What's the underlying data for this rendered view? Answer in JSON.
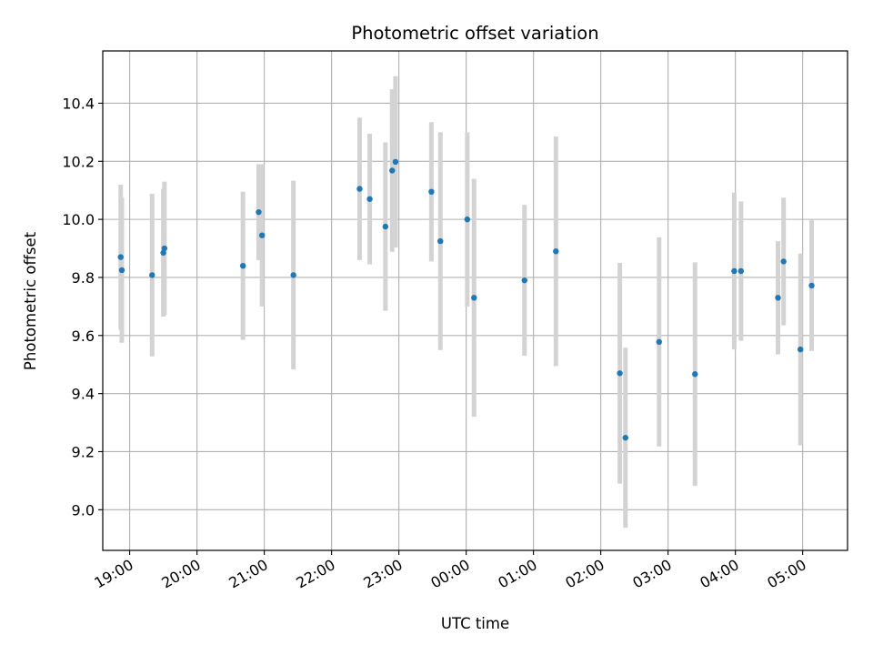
{
  "chart_data": {
    "type": "scatter",
    "title": "Photometric offset variation",
    "xlabel": "UTC time",
    "ylabel": "Photometric offset",
    "xlim": [
      "18:36",
      "05:40"
    ],
    "ylim": [
      8.86,
      10.58
    ],
    "x_ticks": [
      "19:00",
      "20:00",
      "21:00",
      "22:00",
      "23:00",
      "00:00",
      "01:00",
      "02:00",
      "03:00",
      "04:00",
      "05:00"
    ],
    "y_ticks": [
      9.0,
      9.2,
      9.4,
      9.6,
      9.8,
      10.0,
      10.2,
      10.4
    ],
    "grid": true,
    "colors": {
      "marker": "#1f77b4",
      "errorbar": "#d3d3d3",
      "grid": "#b0b0b0"
    },
    "points": [
      {
        "time": "18:52",
        "value": 9.87,
        "err": 0.25
      },
      {
        "time": "18:53",
        "value": 9.825,
        "err": 0.25
      },
      {
        "time": "19:20",
        "value": 9.808,
        "err": 0.28
      },
      {
        "time": "19:30",
        "value": 9.885,
        "err": 0.22
      },
      {
        "time": "19:31",
        "value": 9.9,
        "err": 0.23
      },
      {
        "time": "20:41",
        "value": 9.84,
        "err": 0.255
      },
      {
        "time": "20:55",
        "value": 10.025,
        "err": 0.165
      },
      {
        "time": "20:58",
        "value": 9.945,
        "err": 0.245
      },
      {
        "time": "21:26",
        "value": 9.808,
        "err": 0.325
      },
      {
        "time": "22:25",
        "value": 10.105,
        "err": 0.245
      },
      {
        "time": "22:34",
        "value": 10.07,
        "err": 0.225
      },
      {
        "time": "22:48",
        "value": 9.975,
        "err": 0.29
      },
      {
        "time": "22:54",
        "value": 10.168,
        "err": 0.28
      },
      {
        "time": "22:57",
        "value": 10.198,
        "err": 0.295
      },
      {
        "time": "23:29",
        "value": 10.095,
        "err": 0.24
      },
      {
        "time": "23:37",
        "value": 9.925,
        "err": 0.375
      },
      {
        "time": "00:01",
        "value": 10.0,
        "err": 0.3
      },
      {
        "time": "00:07",
        "value": 9.73,
        "err": 0.41
      },
      {
        "time": "00:52",
        "value": 9.79,
        "err": 0.26
      },
      {
        "time": "01:20",
        "value": 9.89,
        "err": 0.395
      },
      {
        "time": "02:17",
        "value": 9.47,
        "err": 0.38
      },
      {
        "time": "02:22",
        "value": 9.248,
        "err": 0.31
      },
      {
        "time": "02:52",
        "value": 9.578,
        "err": 0.36
      },
      {
        "time": "03:24",
        "value": 9.467,
        "err": 0.385
      },
      {
        "time": "03:59",
        "value": 9.822,
        "err": 0.27
      },
      {
        "time": "04:05",
        "value": 9.822,
        "err": 0.24
      },
      {
        "time": "04:38",
        "value": 9.73,
        "err": 0.195
      },
      {
        "time": "04:43",
        "value": 9.855,
        "err": 0.22
      },
      {
        "time": "04:58",
        "value": 9.552,
        "err": 0.33
      },
      {
        "time": "05:08",
        "value": 9.772,
        "err": 0.225
      }
    ]
  }
}
